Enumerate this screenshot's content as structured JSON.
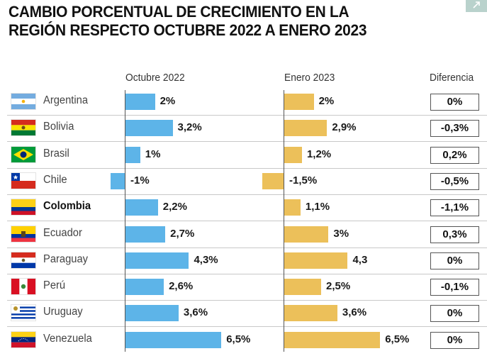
{
  "title_lines": [
    "CAMBIO PORCENTUAL DE CRECIMIENTO EN LA",
    "REGIÓN RESPECTO OCTUBRE 2022 A ENERO 2023"
  ],
  "expand_button": {
    "icon": "arrow-up-right-icon"
  },
  "headers": {
    "october": "Octubre 2022",
    "january": "Enero 2023",
    "difference": "Diferencia"
  },
  "colors": {
    "october_bar": "#5db4e8",
    "january_bar": "#ecc05a"
  },
  "chart_data": {
    "type": "bar",
    "orientation": "horizontal",
    "title": "CAMBIO PORCENTUAL DE CRECIMIENTO EN LA REGIÓN RESPECTO OCTUBRE 2022 A ENERO 2023",
    "categories": [
      "Argentina",
      "Bolivia",
      "Brasil",
      "Chile",
      "Colombia",
      "Ecuador",
      "Paraguay",
      "Perú",
      "Uruguay",
      "Venezuela"
    ],
    "highlighted_category": "Colombia",
    "series": [
      {
        "name": "Octubre 2022",
        "values": [
          2,
          3.2,
          1,
          -1,
          2.2,
          2.7,
          4.3,
          2.6,
          3.6,
          6.5
        ],
        "labels": [
          "2%",
          "3,2%",
          "1%",
          "-1%",
          "2,2%",
          "2,7%",
          "4,3%",
          "2,6%",
          "3,6%",
          "6,5%"
        ]
      },
      {
        "name": "Enero 2023",
        "values": [
          2,
          2.9,
          1.2,
          -1.5,
          1.1,
          3,
          4.3,
          2.5,
          3.6,
          6.5
        ],
        "labels": [
          "2%",
          "2,9%",
          "1,2%",
          "-1,5%",
          "1,1%",
          "3%",
          "4,3",
          "2,5%",
          "3,6%",
          "6,5%"
        ]
      },
      {
        "name": "Diferencia",
        "values": [
          0,
          -0.3,
          0.2,
          -0.5,
          -1.1,
          0.3,
          0,
          -0.1,
          0,
          0
        ],
        "labels": [
          "0%",
          "-0,3%",
          "0,2%",
          "-0,5%",
          "-1,1%",
          "0,3%",
          "0%",
          "-0,1%",
          "0%",
          "0%"
        ]
      }
    ],
    "xlabel": "",
    "ylabel": "",
    "grid": false,
    "legend": "column-headers-top"
  },
  "rows": [
    {
      "country": "Argentina",
      "flag": "argentina-flag",
      "bold": false
    },
    {
      "country": "Bolivia",
      "flag": "bolivia-flag",
      "bold": false
    },
    {
      "country": "Brasil",
      "flag": "brazil-flag",
      "bold": false
    },
    {
      "country": "Chile",
      "flag": "chile-flag",
      "bold": false
    },
    {
      "country": "Colombia",
      "flag": "colombia-flag",
      "bold": true
    },
    {
      "country": "Ecuador",
      "flag": "ecuador-flag",
      "bold": false
    },
    {
      "country": "Paraguay",
      "flag": "paraguay-flag",
      "bold": false
    },
    {
      "country": "Perú",
      "flag": "peru-flag",
      "bold": false
    },
    {
      "country": "Uruguay",
      "flag": "uruguay-flag",
      "bold": false
    },
    {
      "country": "Venezuela",
      "flag": "venezuela-flag",
      "bold": false
    }
  ]
}
